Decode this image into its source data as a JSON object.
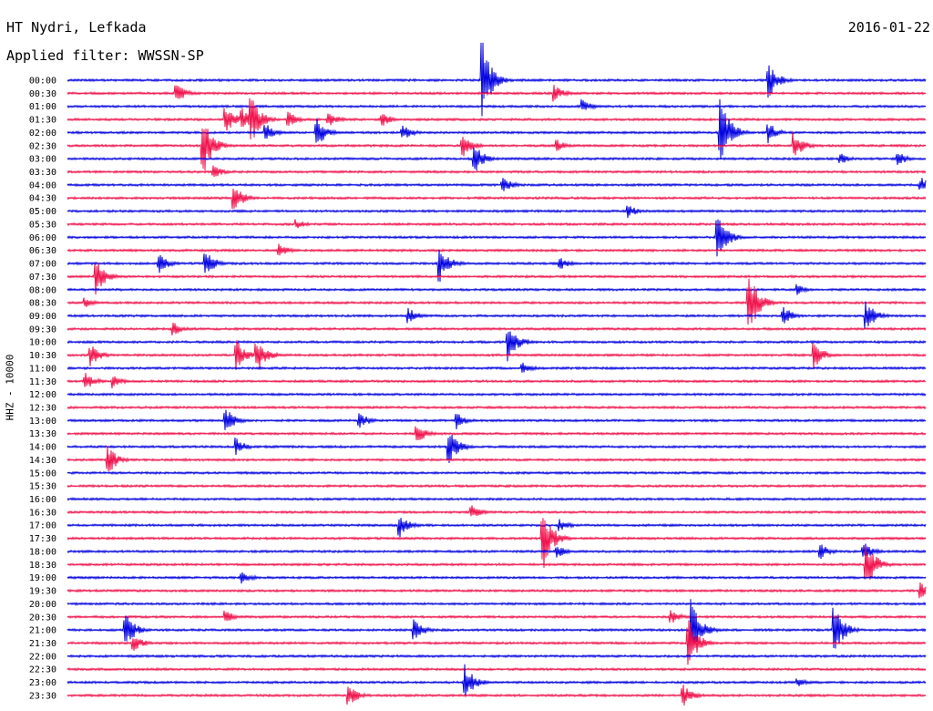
{
  "header": {
    "station": "HT Nydri, Lefkada",
    "date": "2016-01-22",
    "filter": "Applied filter: WWSSN-SP"
  },
  "chart_data": {
    "type": "line",
    "title": "HT Nydri, Lefkada",
    "ylabel": "HHZ - 10000",
    "tick_labels": [
      "00:00",
      "00:30",
      "01:00",
      "01:30",
      "02:00",
      "02:30",
      "03:00",
      "03:30",
      "04:00",
      "04:30",
      "05:00",
      "05:30",
      "06:00",
      "06:30",
      "07:00",
      "07:30",
      "08:00",
      "08:30",
      "09:00",
      "09:30",
      "10:00",
      "10:30",
      "11:00",
      "11:30",
      "12:00",
      "12:30",
      "13:00",
      "13:30",
      "14:00",
      "14:30",
      "15:00",
      "15:30",
      "16:00",
      "16:30",
      "17:00",
      "17:30",
      "18:00",
      "18:30",
      "19:00",
      "19:30",
      "20:00",
      "20:30",
      "21:00",
      "21:30",
      "22:00",
      "22:30",
      "23:00",
      "23:30"
    ],
    "colors": [
      "#0000e0",
      "#f0104a"
    ],
    "x_range_minutes": [
      0,
      30
    ],
    "events": [
      [
        0,
        14.5,
        45
      ],
      [
        0,
        24.5,
        22
      ],
      [
        1,
        3.8,
        12
      ],
      [
        1,
        17.0,
        10
      ],
      [
        2,
        18.0,
        8
      ],
      [
        3,
        5.5,
        18
      ],
      [
        3,
        6.4,
        30
      ],
      [
        3,
        6.1,
        14
      ],
      [
        3,
        7.7,
        10
      ],
      [
        3,
        9.1,
        10
      ],
      [
        3,
        11.0,
        8
      ],
      [
        4,
        6.9,
        12
      ],
      [
        4,
        8.7,
        18
      ],
      [
        4,
        11.7,
        10
      ],
      [
        4,
        22.8,
        44
      ],
      [
        4,
        24.5,
        12
      ],
      [
        5,
        4.7,
        40
      ],
      [
        5,
        13.8,
        14
      ],
      [
        5,
        17.1,
        8
      ],
      [
        5,
        25.4,
        16
      ],
      [
        6,
        14.2,
        18
      ],
      [
        6,
        27.0,
        8
      ],
      [
        6,
        29.0,
        10
      ],
      [
        7,
        5.1,
        8
      ],
      [
        8,
        15.2,
        10
      ],
      [
        8,
        29.8,
        10
      ],
      [
        9,
        5.8,
        18
      ],
      [
        10,
        19.6,
        8
      ],
      [
        11,
        8.0,
        6
      ],
      [
        12,
        22.7,
        30
      ],
      [
        13,
        7.4,
        8
      ],
      [
        14,
        3.2,
        12
      ],
      [
        14,
        4.8,
        16
      ],
      [
        14,
        13.0,
        22
      ],
      [
        14,
        17.2,
        8
      ],
      [
        15,
        1.0,
        20
      ],
      [
        16,
        25.5,
        6
      ],
      [
        17,
        0.6,
        6
      ],
      [
        17,
        23.8,
        40
      ],
      [
        18,
        11.9,
        10
      ],
      [
        18,
        25.0,
        12
      ],
      [
        18,
        27.9,
        18
      ],
      [
        19,
        3.7,
        8
      ],
      [
        20,
        15.4,
        22
      ],
      [
        21,
        0.8,
        14
      ],
      [
        21,
        5.9,
        18
      ],
      [
        21,
        6.6,
        22
      ],
      [
        21,
        26.1,
        16
      ],
      [
        22,
        15.9,
        8
      ],
      [
        23,
        0.6,
        12
      ],
      [
        23,
        1.6,
        8
      ],
      [
        26,
        5.5,
        16
      ],
      [
        26,
        10.2,
        10
      ],
      [
        26,
        13.6,
        10
      ],
      [
        27,
        12.2,
        12
      ],
      [
        28,
        5.9,
        10
      ],
      [
        28,
        13.3,
        22
      ],
      [
        29,
        1.4,
        18
      ],
      [
        33,
        14.1,
        10
      ],
      [
        34,
        11.6,
        14
      ],
      [
        34,
        17.2,
        8
      ],
      [
        35,
        16.6,
        40
      ],
      [
        36,
        17.1,
        8
      ],
      [
        36,
        26.3,
        10
      ],
      [
        36,
        27.8,
        12
      ],
      [
        37,
        27.9,
        30
      ],
      [
        38,
        6.1,
        8
      ],
      [
        39,
        29.8,
        10
      ],
      [
        41,
        5.5,
        8
      ],
      [
        41,
        21.1,
        8
      ],
      [
        42,
        2.0,
        22
      ],
      [
        42,
        12.1,
        14
      ],
      [
        42,
        21.8,
        34
      ],
      [
        42,
        26.8,
        30
      ],
      [
        43,
        2.3,
        10
      ],
      [
        43,
        21.7,
        30
      ],
      [
        46,
        13.9,
        20
      ],
      [
        46,
        25.5,
        6
      ],
      [
        47,
        9.8,
        14
      ],
      [
        47,
        21.5,
        14
      ]
    ]
  }
}
